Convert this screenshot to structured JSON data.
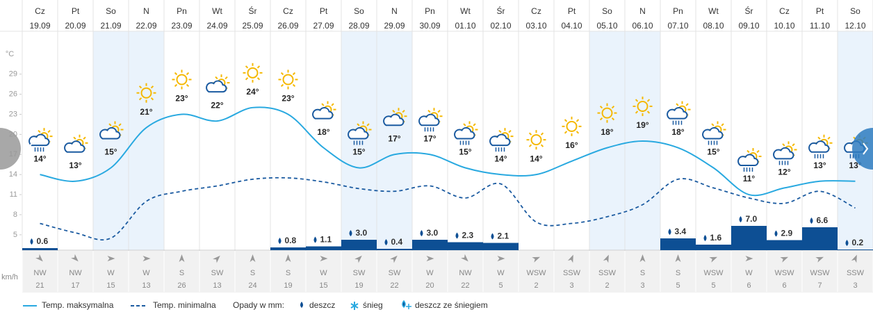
{
  "chart_data": {
    "type": "line",
    "weekdays": [
      "Cz",
      "Pt",
      "So",
      "N",
      "Pn",
      "Wt",
      "Śr",
      "Cz",
      "Pt",
      "So",
      "N",
      "Pn",
      "Wt",
      "Śr",
      "Cz",
      "Pt",
      "So",
      "N",
      "Pn",
      "Wt",
      "Śr",
      "Cz",
      "Pt",
      "So"
    ],
    "categories": [
      "19.09",
      "20.09",
      "21.09",
      "22.09",
      "23.09",
      "24.09",
      "25.09",
      "26.09",
      "27.09",
      "28.09",
      "29.09",
      "30.09",
      "01.10",
      "02.10",
      "03.10",
      "04.10",
      "05.10",
      "06.10",
      "07.10",
      "08.10",
      "09.10",
      "10.10",
      "11.10",
      "12.10"
    ],
    "y_label": "°C",
    "ylim": [
      2.7,
      35.4
    ],
    "yticks": [
      5,
      8,
      11,
      14,
      17,
      20,
      23,
      26,
      29
    ],
    "series": [
      {
        "name": "Temp. maksymalna",
        "color": "#29a9e0",
        "values": [
          14,
          13,
          15,
          21,
          23,
          22,
          24,
          23,
          18,
          15,
          17,
          17,
          15,
          14,
          14,
          16,
          18,
          19,
          18,
          15,
          11,
          12,
          13,
          13
        ],
        "value_labels": [
          "14°",
          "13°",
          "15°",
          "21°",
          "23°",
          "22°",
          "24°",
          "23°",
          "18°",
          "15°",
          "17°",
          "17°",
          "15°",
          "14°",
          "14°",
          "16°",
          "18°",
          "19°",
          "18°",
          "15°",
          "11°",
          "12°",
          "13°",
          "13°"
        ]
      },
      {
        "name": "Temp. minimalna",
        "color": "#1a5aa0",
        "values": [
          6.7,
          5.3,
          4.5,
          10,
          11.5,
          12.3,
          13.3,
          13.5,
          12.9,
          11.9,
          11.5,
          12.3,
          10.5,
          12.6,
          6.9,
          6.7,
          7.7,
          9.5,
          13.3,
          12,
          10.5,
          9.7,
          11.5,
          9
        ]
      }
    ],
    "precipitation": {
      "name": "Opady w mm:",
      "color": "#0d4f94",
      "values": [
        0.6,
        null,
        null,
        null,
        null,
        null,
        null,
        0.8,
        1.1,
        3.0,
        0.4,
        3.0,
        2.3,
        2.1,
        null,
        null,
        null,
        null,
        3.4,
        1.6,
        7.0,
        2.9,
        6.6,
        0.2
      ],
      "value_labels": [
        "0.6",
        null,
        null,
        null,
        null,
        null,
        null,
        "0.8",
        "1.1",
        "3.0",
        "0.4",
        "3.0",
        "2.3",
        "2.1",
        null,
        null,
        null,
        null,
        "3.4",
        "1.6",
        "7.0",
        "2.9",
        "6.6",
        "0.2"
      ]
    },
    "precipitation_types": [
      "deszcz",
      "śnieg",
      "deszcz ze śniegiem"
    ],
    "wind": {
      "unit": "km/h",
      "directions": [
        "NW",
        "NW",
        "W",
        "W",
        "S",
        "SW",
        "S",
        "S",
        "W",
        "SW",
        "SW",
        "W",
        "NW",
        "W",
        "WSW",
        "SSW",
        "SSW",
        "S",
        "S",
        "WSW",
        "W",
        "WSW",
        "WSW",
        "SSW"
      ],
      "speeds": [
        21,
        17,
        15,
        13,
        26,
        13,
        24,
        19,
        15,
        19,
        22,
        20,
        22,
        5,
        2,
        3,
        2,
        3,
        5,
        5,
        6,
        6,
        7,
        3
      ]
    }
  }
}
